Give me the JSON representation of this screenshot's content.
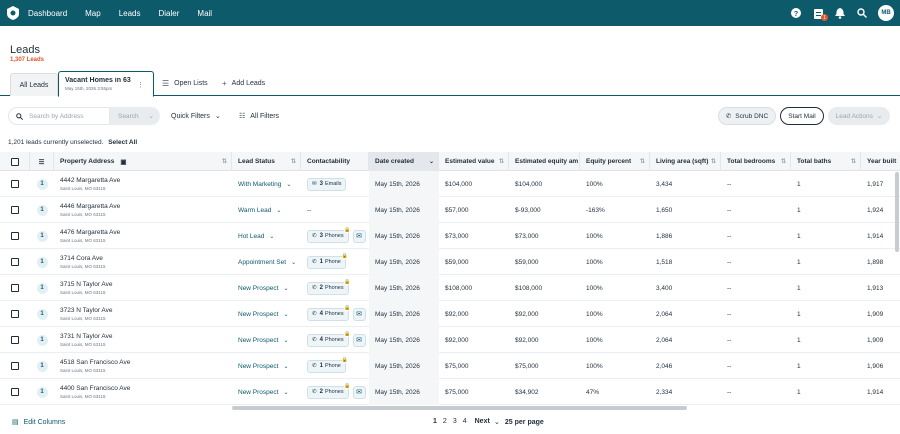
{
  "nav": {
    "links": [
      "Dashboard",
      "Map",
      "Leads",
      "Dialer",
      "Mail"
    ],
    "tasks_badge": "1",
    "avatar": "MB"
  },
  "page": {
    "title": "Leads",
    "count": "1,307 Leads"
  },
  "tabs": {
    "all": "All Leads",
    "active_title": "Vacant Homes in 63",
    "active_date": "May 15th, 2026 3:55pm",
    "open_lists": "Open Lists",
    "add_leads": "Add Leads"
  },
  "filters": {
    "search_placeholder": "Search by Address",
    "search_button": "Search",
    "quick_filters": "Quick Filters",
    "all_filters": "All Filters",
    "scrub_dnc": "Scrub DNC",
    "start_mail": "Start Mail",
    "lead_actions": "Lead Actions"
  },
  "selection": {
    "text": "1,201 leads currently unselected.",
    "select_all": "Select All"
  },
  "columns": {
    "property_address": "Property Address",
    "lead_status": "Lead Status",
    "contactability": "Contactability",
    "date_created": "Date created",
    "estimated_value": "Estimated value",
    "estimated_equity": "Estimated equity am",
    "equity_percent": "Equity percent",
    "living_area": "Living area (sqft)",
    "total_bedrooms": "Total bedrooms",
    "total_baths": "Total baths",
    "year_built": "Year built"
  },
  "rows": [
    {
      "num": "1",
      "addr": "4442 Margaretta Ave",
      "city": "Saint Louis, MO 63115",
      "status": "With Marketing",
      "c_count": "3",
      "c_label": "Emails",
      "c_type": "mail",
      "c_mail": false,
      "date": "May 15th, 2026",
      "value": "$104,000",
      "equity": "$104,000",
      "pct": "100%",
      "area": "3,434",
      "beds": "--",
      "baths": "1",
      "year": "1,917"
    },
    {
      "num": "1",
      "addr": "4446 Margaretta Ave",
      "city": "Saint Louis, MO 63115",
      "status": "Warm Lead",
      "c_count": "",
      "c_label": "--",
      "c_type": "none",
      "c_mail": false,
      "date": "May 15th, 2026",
      "value": "$57,000",
      "equity": "$-93,000",
      "pct": "-163%",
      "area": "1,650",
      "beds": "--",
      "baths": "1",
      "year": "1,924"
    },
    {
      "num": "1",
      "addr": "4476 Margaretta Ave",
      "city": "Saint Louis, MO 63115",
      "status": "Hot Lead",
      "c_count": "3",
      "c_label": "Phones",
      "c_type": "phone",
      "c_mail": true,
      "date": "May 15th, 2026",
      "value": "$73,000",
      "equity": "$73,000",
      "pct": "100%",
      "area": "1,886",
      "beds": "--",
      "baths": "1",
      "year": "1,914"
    },
    {
      "num": "1",
      "addr": "3714 Cora Ave",
      "city": "Saint Louis, MO 63115",
      "status": "Appointment Set",
      "c_count": "1",
      "c_label": "Phone",
      "c_type": "phone",
      "c_mail": false,
      "date": "May 15th, 2026",
      "value": "$59,000",
      "equity": "$59,000",
      "pct": "100%",
      "area": "1,518",
      "beds": "--",
      "baths": "1",
      "year": "1,898"
    },
    {
      "num": "1",
      "addr": "3715 N Taylor Ave",
      "city": "Saint Louis, MO 63115",
      "status": "New Prospect",
      "c_count": "2",
      "c_label": "Phones",
      "c_type": "phone",
      "c_mail": false,
      "date": "May 15th, 2026",
      "value": "$108,000",
      "equity": "$108,000",
      "pct": "100%",
      "area": "3,400",
      "beds": "--",
      "baths": "1",
      "year": "1,913"
    },
    {
      "num": "1",
      "addr": "3723 N Taylor Ave",
      "city": "Saint Louis, MO 63115",
      "status": "New Prospect",
      "c_count": "4",
      "c_label": "Phones",
      "c_type": "phone",
      "c_mail": true,
      "date": "May 15th, 2026",
      "value": "$92,000",
      "equity": "$92,000",
      "pct": "100%",
      "area": "2,064",
      "beds": "--",
      "baths": "1",
      "year": "1,909"
    },
    {
      "num": "1",
      "addr": "3731 N Taylor Ave",
      "city": "Saint Louis, MO 63115",
      "status": "New Prospect",
      "c_count": "4",
      "c_label": "Phones",
      "c_type": "phone",
      "c_mail": true,
      "date": "May 15th, 2026",
      "value": "$92,000",
      "equity": "$92,000",
      "pct": "100%",
      "area": "2,064",
      "beds": "--",
      "baths": "1",
      "year": "1,909"
    },
    {
      "num": "1",
      "addr": "4518 San Francisco Ave",
      "city": "Saint Louis, MO 63115",
      "status": "New Prospect",
      "c_count": "1",
      "c_label": "Phone",
      "c_type": "phone",
      "c_mail": false,
      "date": "May 15th, 2026",
      "value": "$75,000",
      "equity": "$75,000",
      "pct": "100%",
      "area": "2,046",
      "beds": "--",
      "baths": "1",
      "year": "1,906"
    },
    {
      "num": "1",
      "addr": "4400 San Francisco Ave",
      "city": "Saint Louis, MO 63115",
      "status": "New Prospect",
      "c_count": "2",
      "c_label": "Phones",
      "c_type": "phone",
      "c_mail": true,
      "date": "May 15th, 2026",
      "value": "$75,000",
      "equity": "$34,902",
      "pct": "47%",
      "area": "2,334",
      "beds": "--",
      "baths": "1",
      "year": "1,914"
    }
  ],
  "footer": {
    "edit_columns": "Edit Columns",
    "pages": [
      "1",
      "2",
      "3",
      "4"
    ],
    "next": "Next",
    "per_page": "25 per page"
  },
  "colors": {
    "brand": "#0d5a6b",
    "accent": "#e2562a"
  }
}
